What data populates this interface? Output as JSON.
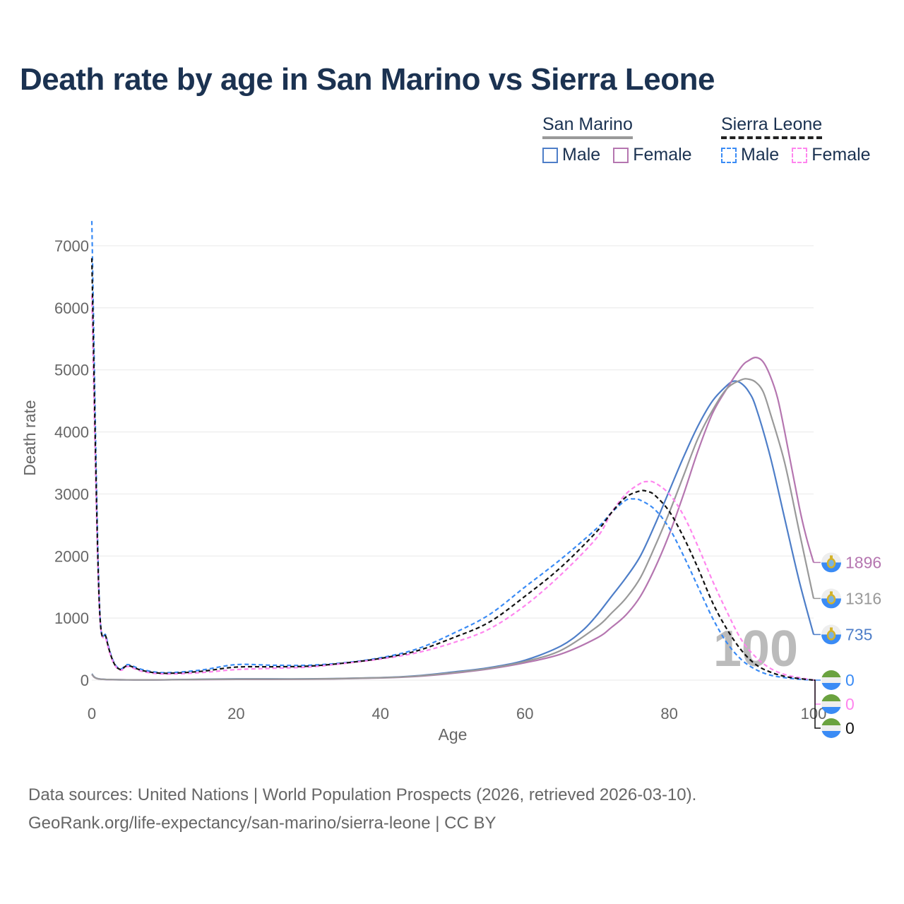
{
  "title": "Death rate by age in San Marino vs Sierra Leone",
  "legend": {
    "groups": [
      {
        "name": "San Marino",
        "items": [
          {
            "label": "Male",
            "color": "#4e7ec8"
          },
          {
            "label": "Female",
            "color": "#b576b0"
          }
        ]
      },
      {
        "name": "Sierra Leone",
        "items": [
          {
            "label": "Male",
            "color": "#3a8bf5"
          },
          {
            "label": "Female",
            "color": "#ff85ee"
          }
        ]
      }
    ]
  },
  "footer": {
    "line1": "Data sources: United Nations | World Population Prospects (2026, retrieved 2026-03-10).",
    "line2": "GeoRank.org/life-expectancy/san-marino/sierra-leone | CC BY"
  },
  "chart_data": {
    "type": "line",
    "title": "Death rate by age in San Marino vs Sierra Leone",
    "xlabel": "Age",
    "ylabel": "Death rate",
    "xlim": [
      0,
      100
    ],
    "ylim": [
      0,
      7400
    ],
    "xticks": [
      0,
      20,
      40,
      60,
      80,
      100
    ],
    "yticks": [
      0,
      1000,
      2000,
      3000,
      4000,
      5000,
      6000,
      7000
    ],
    "grid": true,
    "watermark": "100",
    "series": [
      {
        "name": "San Marino Male",
        "country": "San Marino",
        "color": "#4e7ec8",
        "dash": false,
        "end_label": "735",
        "x": [
          0,
          1,
          5,
          10,
          20,
          30,
          40,
          45,
          50,
          55,
          60,
          65,
          68,
          70,
          72,
          74,
          76,
          78,
          80,
          82,
          84,
          86,
          88,
          89,
          90,
          91,
          92,
          94,
          96,
          98,
          100
        ],
        "y": [
          100,
          20,
          5,
          5,
          20,
          20,
          40,
          70,
          130,
          200,
          320,
          550,
          800,
          1050,
          1350,
          1650,
          2000,
          2500,
          3050,
          3600,
          4100,
          4500,
          4750,
          4820,
          4780,
          4650,
          4400,
          3600,
          2600,
          1600,
          735
        ]
      },
      {
        "name": "San Marino Female",
        "country": "San Marino",
        "color": "#b576b0",
        "dash": false,
        "end_label": "1896",
        "x": [
          0,
          1,
          5,
          10,
          20,
          30,
          40,
          45,
          50,
          55,
          60,
          65,
          70,
          72,
          74,
          76,
          78,
          80,
          82,
          84,
          86,
          88,
          90,
          91,
          92,
          93,
          94,
          95,
          96,
          98,
          99,
          100
        ],
        "y": [
          90,
          18,
          5,
          5,
          12,
          15,
          35,
          60,
          110,
          180,
          280,
          420,
          680,
          850,
          1050,
          1350,
          1800,
          2350,
          3000,
          3700,
          4300,
          4700,
          5050,
          5150,
          5200,
          5130,
          4900,
          4550,
          4000,
          2800,
          2300,
          1896
        ]
      },
      {
        "name": "San Marino",
        "country": "San Marino",
        "color": "#999999",
        "dash": false,
        "end_label": "1316",
        "x": [
          0,
          1,
          5,
          10,
          20,
          30,
          40,
          45,
          50,
          55,
          60,
          65,
          70,
          72,
          74,
          76,
          78,
          80,
          82,
          84,
          86,
          88,
          90,
          91,
          92,
          93,
          94,
          96,
          98,
          100
        ],
        "y": [
          95,
          19,
          5,
          5,
          16,
          18,
          38,
          65,
          120,
          190,
          300,
          480,
          860,
          1080,
          1320,
          1650,
          2150,
          2700,
          3300,
          3900,
          4350,
          4700,
          4840,
          4850,
          4800,
          4650,
          4300,
          3500,
          2400,
          1316
        ]
      },
      {
        "name": "Sierra Leone Male",
        "country": "Sierra Leone",
        "color": "#3a8bf5",
        "dash": true,
        "end_label": "0",
        "x": [
          0,
          1,
          2,
          3,
          4,
          5,
          7,
          10,
          15,
          20,
          25,
          30,
          35,
          40,
          45,
          50,
          55,
          60,
          65,
          70,
          72,
          74,
          75,
          76,
          78,
          80,
          82,
          84,
          86,
          88,
          90,
          92,
          94,
          96,
          98,
          100
        ],
        "y": [
          7400,
          1400,
          700,
          300,
          180,
          250,
          170,
          120,
          160,
          250,
          240,
          240,
          280,
          360,
          500,
          750,
          1050,
          1500,
          1950,
          2450,
          2700,
          2900,
          2920,
          2900,
          2750,
          2450,
          2000,
          1500,
          1000,
          600,
          330,
          170,
          80,
          40,
          15,
          0
        ]
      },
      {
        "name": "Sierra Leone Female",
        "country": "Sierra Leone",
        "color": "#ff85ee",
        "dash": true,
        "end_label": "0",
        "x": [
          0,
          1,
          2,
          3,
          4,
          5,
          7,
          10,
          15,
          20,
          25,
          30,
          35,
          40,
          45,
          50,
          55,
          60,
          65,
          70,
          72,
          74,
          76,
          77,
          78,
          80,
          82,
          84,
          86,
          88,
          90,
          92,
          94,
          96,
          98,
          100
        ],
        "y": [
          6200,
          1300,
          650,
          280,
          160,
          220,
          140,
          100,
          120,
          170,
          190,
          210,
          270,
          340,
          440,
          600,
          820,
          1200,
          1700,
          2300,
          2700,
          3000,
          3170,
          3200,
          3180,
          3000,
          2650,
          2150,
          1600,
          1100,
          650,
          370,
          190,
          90,
          40,
          0
        ]
      },
      {
        "name": "Sierra Leone",
        "country": "Sierra Leone",
        "color": "#111111",
        "dash": true,
        "end_label": "0",
        "x": [
          0,
          1,
          2,
          3,
          4,
          5,
          7,
          10,
          15,
          20,
          25,
          30,
          35,
          40,
          45,
          50,
          55,
          60,
          65,
          70,
          72,
          74,
          76,
          77,
          78,
          80,
          82,
          84,
          86,
          88,
          90,
          92,
          94,
          96,
          98,
          100
        ],
        "y": [
          6800,
          1350,
          680,
          290,
          170,
          235,
          155,
          110,
          140,
          210,
          215,
          225,
          275,
          350,
          470,
          680,
          930,
          1350,
          1820,
          2400,
          2700,
          2950,
          3050,
          3040,
          2980,
          2720,
          2300,
          1800,
          1250,
          820,
          480,
          250,
          130,
          60,
          25,
          0
        ]
      }
    ]
  }
}
